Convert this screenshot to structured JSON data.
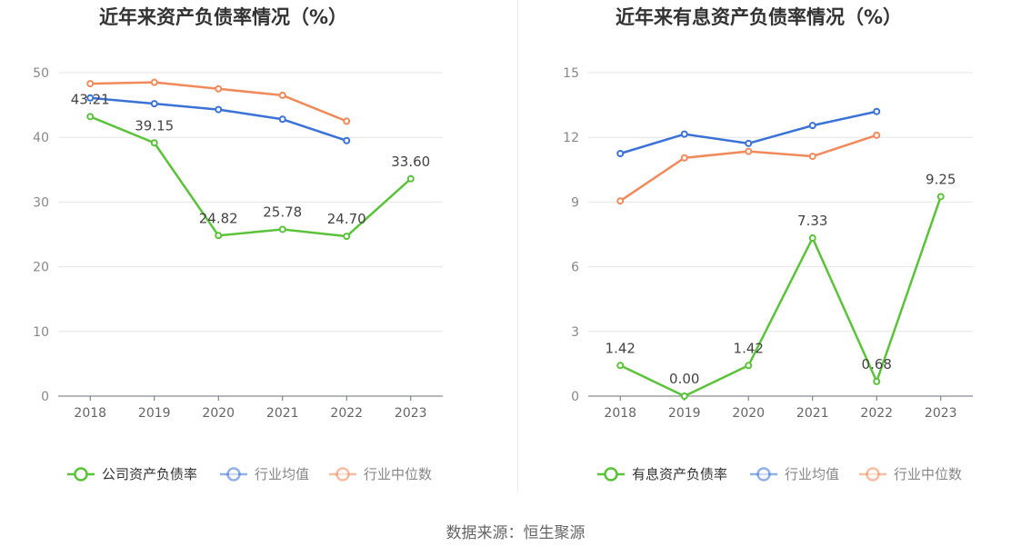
{
  "footer": {
    "source": "数据来源：恒生聚源"
  },
  "chart_data": [
    {
      "type": "line",
      "title": "近年来资产负债率情况（%）",
      "xlabel": "",
      "ylabel": "",
      "categories": [
        "2018",
        "2019",
        "2020",
        "2021",
        "2022",
        "2023"
      ],
      "ylim": [
        0,
        50
      ],
      "yticks": [
        0,
        10,
        20,
        30,
        40,
        50
      ],
      "grid": true,
      "legend_position": "bottom",
      "series": [
        {
          "name": "公司资产负债率",
          "color": "#5ac33a",
          "values": [
            43.21,
            39.15,
            24.82,
            25.78,
            24.7,
            33.6
          ],
          "labels": [
            "43.21",
            "39.15",
            "24.82",
            "25.78",
            "24.70",
            "33.60"
          ]
        },
        {
          "name": "行业均值",
          "color": "#3a72d8",
          "values": [
            46.1,
            45.2,
            44.3,
            42.8,
            39.5,
            null
          ]
        },
        {
          "name": "行业中位数",
          "color": "#f2895a",
          "values": [
            48.3,
            48.5,
            47.5,
            46.5,
            42.5,
            null
          ]
        }
      ]
    },
    {
      "type": "line",
      "title": "近年来有息资产负债率情况（%）",
      "xlabel": "",
      "ylabel": "",
      "categories": [
        "2018",
        "2019",
        "2020",
        "2021",
        "2022",
        "2023"
      ],
      "ylim": [
        0,
        15
      ],
      "yticks": [
        0,
        3,
        6,
        9,
        12,
        15
      ],
      "grid": true,
      "legend_position": "bottom",
      "series": [
        {
          "name": "有息资产负债率",
          "color": "#5ac33a",
          "values": [
            1.42,
            0.0,
            1.42,
            7.33,
            0.68,
            9.25
          ],
          "labels": [
            "1.42",
            "0.00",
            "1.42",
            "7.33",
            "0.68",
            "9.25"
          ]
        },
        {
          "name": "行业均值",
          "color": "#3a72d8",
          "values": [
            11.25,
            12.15,
            11.72,
            12.55,
            13.2,
            null
          ]
        },
        {
          "name": "行业中位数",
          "color": "#f2895a",
          "values": [
            9.05,
            11.05,
            11.35,
            11.12,
            12.1,
            null
          ]
        }
      ]
    }
  ]
}
